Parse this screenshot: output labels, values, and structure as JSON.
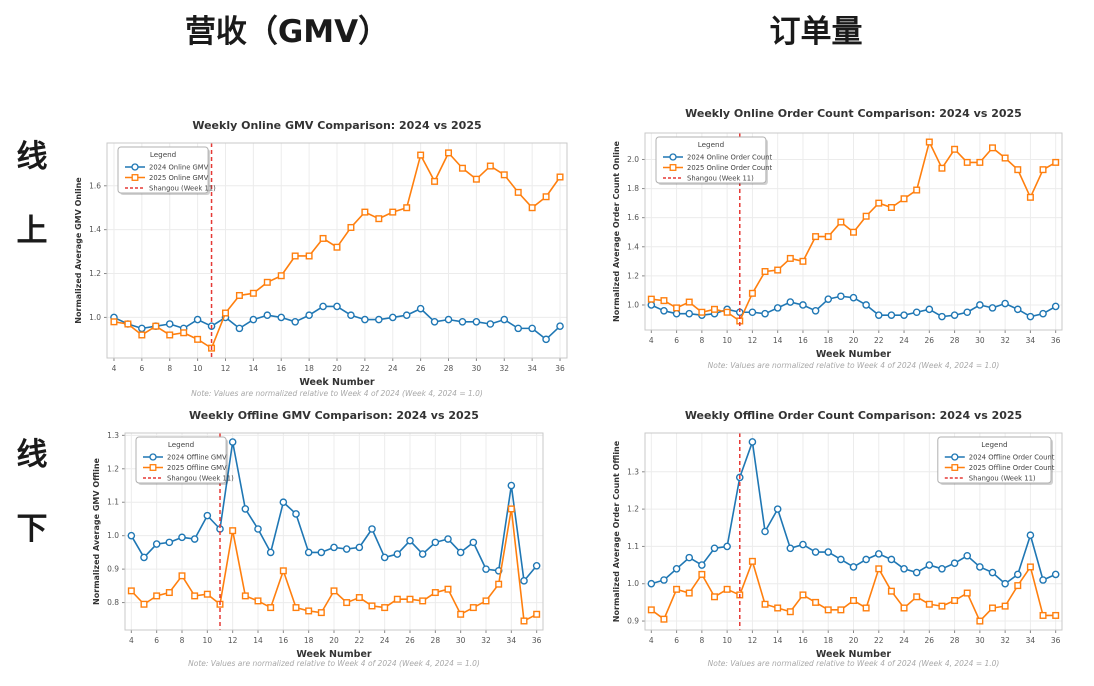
{
  "page": {
    "col_headers": [
      {
        "label": "营收（GMV）"
      },
      {
        "label": "订单量"
      }
    ],
    "row_headers": [
      {
        "label": "线上"
      },
      {
        "label": "线下"
      }
    ],
    "colors": {
      "series_2024": "#1f77b4",
      "series_2025": "#ff7f0e",
      "event_line": "#e53935"
    }
  },
  "chart_data": [
    {
      "id": "weekly-online-gmv",
      "type": "line",
      "title": "Weekly Online GMV Comparison: 2024 vs 2025",
      "xlabel": "Week Number",
      "ylabel": "Normalized Average GMV Online",
      "note": "Note: Values are normalized relative to Week 4 of 2024 (Week 4, 2024 = 1.0)",
      "legend": {
        "title": "Legend",
        "position": "upper-left"
      },
      "grid": true,
      "x_weeks": [
        4,
        5,
        6,
        7,
        8,
        9,
        10,
        11,
        12,
        13,
        14,
        15,
        16,
        17,
        18,
        19,
        20,
        21,
        22,
        23,
        24,
        25,
        26,
        27,
        28,
        29,
        30,
        31,
        32,
        33,
        34,
        35,
        36
      ],
      "xticks": [
        4,
        6,
        8,
        10,
        12,
        14,
        16,
        18,
        20,
        22,
        24,
        26,
        28,
        30,
        32,
        34,
        36
      ],
      "yticks": [
        1.0,
        1.2,
        1.4,
        1.6
      ],
      "xlim": [
        3.5,
        36.5
      ],
      "ylim": [
        0.815,
        1.795
      ],
      "vline": {
        "x": 11,
        "label": "Shangou (Week 11)",
        "color": "#e53935"
      },
      "series": [
        {
          "name": "2024 Online GMV",
          "color": "#1f77b4",
          "marker": "circle",
          "values": [
            1.0,
            0.97,
            0.95,
            0.96,
            0.97,
            0.95,
            0.99,
            0.96,
            1.0,
            0.95,
            0.99,
            1.01,
            1.0,
            0.98,
            1.01,
            1.05,
            1.05,
            1.01,
            0.99,
            0.99,
            1.0,
            1.01,
            1.04,
            0.98,
            0.99,
            0.98,
            0.98,
            0.97,
            0.99,
            0.95,
            0.95,
            0.9,
            0.96
          ]
        },
        {
          "name": "2025 Online GMV",
          "color": "#ff7f0e",
          "marker": "square",
          "values": [
            0.98,
            0.97,
            0.92,
            0.96,
            0.92,
            0.93,
            0.9,
            0.86,
            1.02,
            1.1,
            1.11,
            1.16,
            1.19,
            1.28,
            1.28,
            1.36,
            1.32,
            1.41,
            1.48,
            1.45,
            1.48,
            1.5,
            1.74,
            1.62,
            1.75,
            1.68,
            1.63,
            1.69,
            1.65,
            1.57,
            1.5,
            1.55,
            1.64
          ]
        }
      ]
    },
    {
      "id": "weekly-online-order-count",
      "type": "line",
      "title": "Weekly Online Order Count Comparison: 2024 vs 2025",
      "xlabel": "Week Number",
      "ylabel": "Normalized Average Order Count Online",
      "note": "Note: Values are normalized relative to Week 4 of 2024 (Week 4, 2024 = 1.0)",
      "legend": {
        "title": "Legend",
        "position": "upper-left"
      },
      "grid": true,
      "x_weeks": [
        4,
        5,
        6,
        7,
        8,
        9,
        10,
        11,
        12,
        13,
        14,
        15,
        16,
        17,
        18,
        19,
        20,
        21,
        22,
        23,
        24,
        25,
        26,
        27,
        28,
        29,
        30,
        31,
        32,
        33,
        34,
        35,
        36
      ],
      "xticks": [
        4,
        6,
        8,
        10,
        12,
        14,
        16,
        18,
        20,
        22,
        24,
        26,
        28,
        30,
        32,
        34,
        36
      ],
      "yticks": [
        1.0,
        1.2,
        1.4,
        1.6,
        1.8,
        2.0
      ],
      "xlim": [
        3.5,
        36.5
      ],
      "ylim": [
        0.828,
        2.182
      ],
      "vline": {
        "x": 11,
        "label": "Shangou (Week 11)",
        "color": "#e53935"
      },
      "series": [
        {
          "name": "2024 Online Order Count",
          "color": "#1f77b4",
          "marker": "circle",
          "values": [
            1.0,
            0.96,
            0.94,
            0.94,
            0.93,
            0.94,
            0.97,
            0.95,
            0.95,
            0.94,
            0.98,
            1.02,
            1.0,
            0.96,
            1.04,
            1.06,
            1.05,
            1.0,
            0.93,
            0.93,
            0.93,
            0.95,
            0.97,
            0.92,
            0.93,
            0.95,
            1.0,
            0.98,
            1.01,
            0.97,
            0.92,
            0.94,
            0.99
          ]
        },
        {
          "name": "2025 Online Order Count",
          "color": "#ff7f0e",
          "marker": "square",
          "values": [
            1.04,
            1.03,
            0.98,
            1.02,
            0.95,
            0.97,
            0.95,
            0.89,
            1.08,
            1.23,
            1.24,
            1.32,
            1.3,
            1.47,
            1.47,
            1.57,
            1.5,
            1.61,
            1.7,
            1.67,
            1.73,
            1.79,
            2.12,
            1.94,
            2.07,
            1.98,
            1.98,
            2.08,
            2.01,
            1.93,
            1.74,
            1.93,
            1.98
          ]
        }
      ]
    },
    {
      "id": "weekly-offline-gmv",
      "type": "line",
      "title": "Weekly Offline GMV Comparison: 2024 vs 2025",
      "xlabel": "Week Number",
      "ylabel": "Normalized Average GMV Offline",
      "note": "Note: Values are normalized relative to Week 4 of 2024 (Week 4, 2024 = 1.0)",
      "legend": {
        "title": "Legend",
        "position": "upper-left"
      },
      "grid": true,
      "x_weeks": [
        4,
        5,
        6,
        7,
        8,
        9,
        10,
        11,
        12,
        13,
        14,
        15,
        16,
        17,
        18,
        19,
        20,
        21,
        22,
        23,
        24,
        25,
        26,
        27,
        28,
        29,
        30,
        31,
        32,
        33,
        34,
        35,
        36
      ],
      "xticks": [
        4,
        6,
        8,
        10,
        12,
        14,
        16,
        18,
        20,
        22,
        24,
        26,
        28,
        30,
        32,
        34,
        36
      ],
      "yticks": [
        0.8,
        0.9,
        1.0,
        1.1,
        1.2,
        1.3
      ],
      "xlim": [
        3.5,
        36.5
      ],
      "ylim": [
        0.718,
        1.307
      ],
      "vline": {
        "x": 11,
        "label": "Shangou (Week 11)",
        "color": "#e53935"
      },
      "series": [
        {
          "name": "2024 Offline GMV",
          "color": "#1f77b4",
          "marker": "circle",
          "values": [
            1.0,
            0.935,
            0.975,
            0.98,
            0.995,
            0.99,
            1.06,
            1.02,
            1.28,
            1.08,
            1.02,
            0.95,
            1.1,
            1.065,
            0.95,
            0.95,
            0.965,
            0.96,
            0.965,
            1.02,
            0.935,
            0.945,
            0.985,
            0.945,
            0.98,
            0.99,
            0.95,
            0.98,
            0.9,
            0.895,
            1.15,
            0.865,
            0.91
          ]
        },
        {
          "name": "2025 Offline GMV",
          "color": "#ff7f0e",
          "marker": "square",
          "values": [
            0.835,
            0.795,
            0.82,
            0.83,
            0.88,
            0.82,
            0.825,
            0.795,
            1.015,
            0.82,
            0.805,
            0.785,
            0.895,
            0.785,
            0.775,
            0.77,
            0.835,
            0.8,
            0.815,
            0.79,
            0.785,
            0.81,
            0.81,
            0.805,
            0.83,
            0.84,
            0.765,
            0.785,
            0.805,
            0.855,
            1.08,
            0.745,
            0.765
          ]
        }
      ]
    },
    {
      "id": "weekly-offline-order-count",
      "type": "line",
      "title": "Weekly Offline Order Count Comparison: 2024 vs 2025",
      "xlabel": "Week Number",
      "ylabel": "Normalized Average Order Count Offline",
      "note": "Note: Values are normalized relative to Week 4 of 2024 (Week 4, 2024 = 1.0)",
      "legend": {
        "title": "Legend",
        "position": "upper-right"
      },
      "grid": true,
      "x_weeks": [
        4,
        5,
        6,
        7,
        8,
        9,
        10,
        11,
        12,
        13,
        14,
        15,
        16,
        17,
        18,
        19,
        20,
        21,
        22,
        23,
        24,
        25,
        26,
        27,
        28,
        29,
        30,
        31,
        32,
        33,
        34,
        35,
        36
      ],
      "xticks": [
        4,
        6,
        8,
        10,
        12,
        14,
        16,
        18,
        20,
        22,
        24,
        26,
        28,
        30,
        32,
        34,
        36
      ],
      "yticks": [
        0.9,
        1.0,
        1.1,
        1.2,
        1.3
      ],
      "xlim": [
        3.5,
        36.5
      ],
      "ylim": [
        0.876,
        1.404
      ],
      "vline": {
        "x": 11,
        "label": "Shangou (Week 11)",
        "color": "#e53935"
      },
      "series": [
        {
          "name": "2024 Offline Order Count",
          "color": "#1f77b4",
          "marker": "circle",
          "values": [
            1.0,
            1.01,
            1.04,
            1.07,
            1.05,
            1.095,
            1.1,
            1.285,
            1.38,
            1.14,
            1.2,
            1.095,
            1.105,
            1.085,
            1.085,
            1.065,
            1.045,
            1.065,
            1.08,
            1.065,
            1.04,
            1.03,
            1.05,
            1.04,
            1.055,
            1.075,
            1.045,
            1.03,
            1.0,
            1.025,
            1.13,
            1.01,
            1.025
          ]
        },
        {
          "name": "2025 Offline Order Count",
          "color": "#ff7f0e",
          "marker": "square",
          "values": [
            0.93,
            0.905,
            0.985,
            0.975,
            1.025,
            0.965,
            0.985,
            0.97,
            1.06,
            0.945,
            0.935,
            0.925,
            0.97,
            0.95,
            0.93,
            0.93,
            0.955,
            0.935,
            1.04,
            0.98,
            0.935,
            0.965,
            0.945,
            0.94,
            0.955,
            0.975,
            0.9,
            0.935,
            0.94,
            0.995,
            1.045,
            0.915,
            0.915
          ]
        }
      ]
    }
  ]
}
